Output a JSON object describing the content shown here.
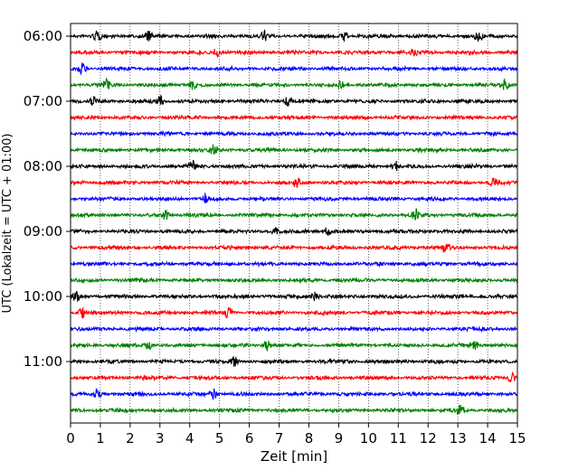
{
  "chart_data": {
    "type": "line",
    "title": "",
    "xlabel": "Zeit  [min]",
    "ylabel": "UTC (Lokalzeit = UTC + 01:00)",
    "xlim": [
      0,
      15
    ],
    "x_ticks": [
      0,
      1,
      2,
      3,
      4,
      5,
      6,
      7,
      8,
      9,
      10,
      11,
      12,
      13,
      14,
      15
    ],
    "x_tick_labels": [
      "0",
      "1",
      "2",
      "3",
      "4",
      "5",
      "6",
      "7",
      "8",
      "9",
      "10",
      "11",
      "12",
      "13",
      "14",
      "15"
    ],
    "y_tick_labels": [
      "06:00",
      "07:00",
      "08:00",
      "09:00",
      "10:00",
      "11:00"
    ],
    "trace_interval_min": 15,
    "trace_count": 24,
    "grid": "vertical-dotted",
    "colors": {
      "trace_cycle": [
        "#000000",
        "#ff0000",
        "#0000ff",
        "#008000"
      ],
      "grid": "#000000",
      "axes": "#000000"
    },
    "traces": [
      {
        "start": "06:00",
        "color": "#000000",
        "events": [
          0.9,
          2.6,
          6.5,
          9.2,
          13.7
        ]
      },
      {
        "start": "06:15",
        "color": "#ff0000",
        "events": [
          4.9,
          11.5
        ]
      },
      {
        "start": "06:30",
        "color": "#0000ff",
        "events": [
          0.4
        ]
      },
      {
        "start": "06:45",
        "color": "#008000",
        "events": [
          1.2,
          4.1,
          9.1,
          14.6
        ]
      },
      {
        "start": "07:00",
        "color": "#000000",
        "events": [
          0.8,
          3.0,
          7.3
        ]
      },
      {
        "start": "07:15",
        "color": "#ff0000",
        "events": []
      },
      {
        "start": "07:30",
        "color": "#0000ff",
        "events": []
      },
      {
        "start": "07:45",
        "color": "#008000",
        "events": [
          4.8
        ]
      },
      {
        "start": "08:00",
        "color": "#000000",
        "events": [
          4.1,
          10.9
        ]
      },
      {
        "start": "08:15",
        "color": "#ff0000",
        "events": [
          7.6,
          14.2
        ]
      },
      {
        "start": "08:30",
        "color": "#0000ff",
        "events": [
          4.5
        ]
      },
      {
        "start": "08:45",
        "color": "#008000",
        "events": [
          3.2,
          11.6
        ]
      },
      {
        "start": "09:00",
        "color": "#000000",
        "events": [
          6.9,
          8.6
        ]
      },
      {
        "start": "09:15",
        "color": "#ff0000",
        "events": [
          12.6
        ]
      },
      {
        "start": "09:30",
        "color": "#0000ff",
        "events": []
      },
      {
        "start": "09:45",
        "color": "#008000",
        "events": []
      },
      {
        "start": "10:00",
        "color": "#000000",
        "events": [
          0.2,
          8.2
        ]
      },
      {
        "start": "10:15",
        "color": "#ff0000",
        "events": [
          0.4,
          5.3
        ]
      },
      {
        "start": "10:30",
        "color": "#0000ff",
        "events": []
      },
      {
        "start": "10:45",
        "color": "#008000",
        "events": [
          2.6,
          6.6,
          13.6
        ]
      },
      {
        "start": "11:00",
        "color": "#000000",
        "events": [
          5.5
        ]
      },
      {
        "start": "11:15",
        "color": "#ff0000",
        "events": [
          14.8
        ]
      },
      {
        "start": "11:30",
        "color": "#0000ff",
        "events": [
          0.9,
          4.8
        ]
      },
      {
        "start": "11:45",
        "color": "#008000",
        "events": [
          13.1
        ]
      }
    ]
  }
}
